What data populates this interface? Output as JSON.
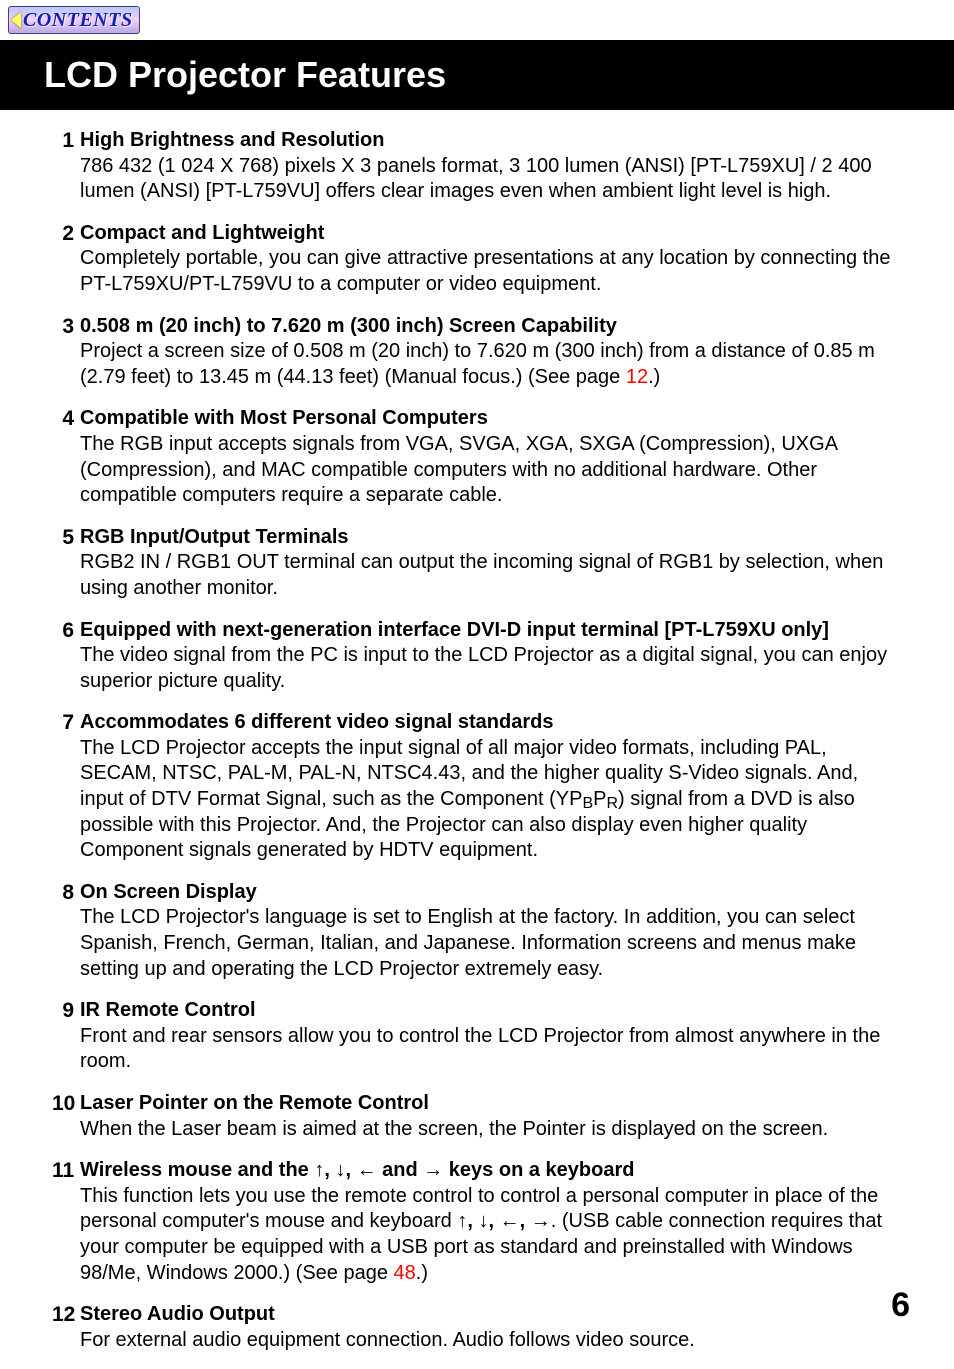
{
  "nav": {
    "contents_label": "CONTENTS"
  },
  "page": {
    "title": "LCD Projector Features",
    "number": "6"
  },
  "xref": {
    "p12": "12",
    "p48": "48"
  },
  "features": [
    {
      "n": "1",
      "head": "High Brightness and Resolution",
      "body": "786 432 (1 024 X 768) pixels X 3 panels format, 3 100 lumen (ANSI) [PT-L759XU] / 2 400 lumen (ANSI) [PT-L759VU]  offers clear images even when ambient light level is high."
    },
    {
      "n": "2",
      "head": "Compact and Lightweight",
      "body": "Completely portable, you can give attractive presentations at any location by connecting the PT-L759XU/PT-L759VU to a computer or video equipment."
    },
    {
      "n": "3",
      "head": "0.508 m (20 inch) to 7.620 m (300 inch) Screen Capability",
      "body_pre": "Project a screen size of 0.508 m (20 inch) to 7.620 m (300 inch) from a distance of 0.85 m (2.79 feet) to 13.45 m (44.13 feet) (Manual focus.) (See page ",
      "body_post": ".)"
    },
    {
      "n": "4",
      "head": "Compatible with Most Personal Computers",
      "body": "The RGB input accepts signals from VGA, SVGA, XGA, SXGA (Compression), UXGA (Compression), and MAC compatible computers with no additional hardware. Other compatible computers require a separate cable."
    },
    {
      "n": "5",
      "head": "RGB Input/Output Terminals",
      "body": "RGB2 IN / RGB1 OUT terminal can output the incoming signal of RGB1 by selection, when using another monitor."
    },
    {
      "n": "6",
      "head": "Equipped with next-generation interface DVI-D input terminal [PT-L759XU only]",
      "body": "The video signal from the PC is input to the LCD Projector as a digital signal, you can enjoy superior picture quality."
    },
    {
      "n": "7",
      "head": "Accommodates 6 different video signal standards",
      "body_pre": "The LCD Projector accepts the input signal of all major video formats, including PAL, SECAM, NTSC, PAL-M, PAL-N, NTSC4.43, and the higher quality S-Video signals. And, input of DTV Format Signal, such as the Component (YP",
      "body_mid1": "B",
      "body_mid2": "P",
      "body_mid3": "R",
      "body_post": ") signal from a DVD is also possible with this Projector. And, the Projector can also display even higher quality Component signals generated by HDTV equipment."
    },
    {
      "n": "8",
      "head": "On Screen Display",
      "body": "The LCD Projector's language is set to English at the factory. In addition, you can select Spanish, French, German, Italian, and Japanese. Information screens and menus make setting up and operating the LCD Projector extremely easy."
    },
    {
      "n": "9",
      "head": "IR Remote Control",
      "body": "Front and rear sensors allow you to control the LCD Projector from almost anywhere in the room."
    },
    {
      "n": "10",
      "head": "Laser Pointer on the Remote Control",
      "body": "When the Laser beam is aimed at the screen, the Pointer is displayed on the screen."
    },
    {
      "n": "11",
      "head_pre": "Wireless mouse and the ",
      "head_arrows": "↑, ↓, ←",
      "head_mid": " and ",
      "head_arrow_last": "→",
      "head_post": " keys on a keyboard",
      "body_pre": "This function lets you use the remote control to control a personal computer in place of the personal computer's mouse and keyboard ",
      "body_arrows": "↑, ↓, ←, →",
      "body_mid": ". (USB cable connection requires that your computer be equipped with a USB port as standard and preinstalled with Windows 98/Me, Windows 2000.) (See page ",
      "body_post": ".)"
    },
    {
      "n": "12",
      "head": "Stereo Audio Output",
      "body": "For external audio equipment connection. Audio follows video source."
    }
  ]
}
